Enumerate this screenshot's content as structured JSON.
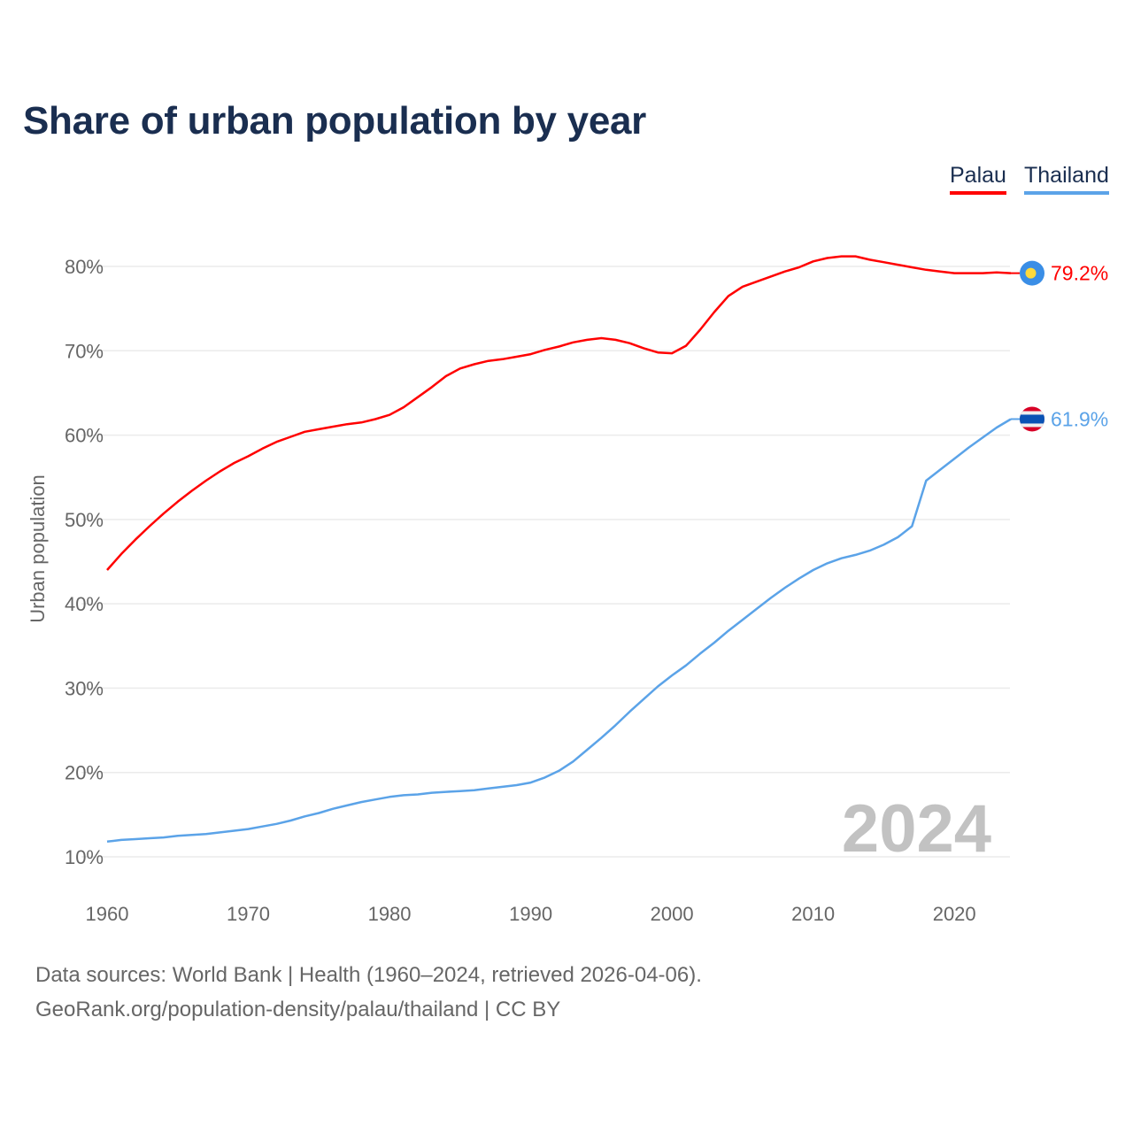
{
  "chart_data": {
    "type": "line",
    "title": "Share of urban population by year",
    "xlabel": "",
    "ylabel": "Urban population",
    "xlim": [
      1960,
      2024
    ],
    "ylim": [
      10,
      80
    ],
    "x_ticks": [
      "1960",
      "1970",
      "1980",
      "1990",
      "2000",
      "2010",
      "2020"
    ],
    "y_ticks": [
      "10%",
      "20%",
      "30%",
      "40%",
      "50%",
      "60%",
      "70%",
      "80%"
    ],
    "grid": true,
    "legend_placement": "top-right",
    "year_watermark": "2024",
    "x": [
      1960,
      1961,
      1962,
      1963,
      1964,
      1965,
      1966,
      1967,
      1968,
      1969,
      1970,
      1971,
      1972,
      1973,
      1974,
      1975,
      1976,
      1977,
      1978,
      1979,
      1980,
      1981,
      1982,
      1983,
      1984,
      1985,
      1986,
      1987,
      1988,
      1989,
      1990,
      1991,
      1992,
      1993,
      1994,
      1995,
      1996,
      1997,
      1998,
      1999,
      2000,
      2001,
      2002,
      2003,
      2004,
      2005,
      2006,
      2007,
      2008,
      2009,
      2010,
      2011,
      2012,
      2013,
      2014,
      2015,
      2016,
      2017,
      2018,
      2019,
      2020,
      2021,
      2022,
      2023,
      2024
    ],
    "series": [
      {
        "name": "Palau",
        "color": "#ff0000",
        "end_label": "79.2%",
        "flag": "palau-flag",
        "values": [
          44.0,
          45.9,
          47.6,
          49.2,
          50.7,
          52.1,
          53.4,
          54.6,
          55.7,
          56.7,
          57.5,
          58.4,
          59.2,
          59.8,
          60.4,
          60.7,
          61.0,
          61.3,
          61.5,
          61.9,
          62.4,
          63.3,
          64.5,
          65.7,
          67.0,
          67.9,
          68.4,
          68.8,
          69.0,
          69.3,
          69.6,
          70.1,
          70.5,
          71.0,
          71.3,
          71.5,
          71.3,
          70.9,
          70.3,
          69.8,
          69.7,
          70.6,
          72.5,
          74.6,
          76.5,
          77.6,
          78.2,
          78.8,
          79.4,
          79.9,
          80.6,
          81.0,
          81.2,
          81.2,
          80.8,
          80.5,
          80.2,
          79.9,
          79.6,
          79.4,
          79.2,
          79.2,
          79.2,
          79.3,
          79.2
        ]
      },
      {
        "name": "Thailand",
        "color": "#5ba3e8",
        "end_label": "61.9%",
        "flag": "thailand-flag",
        "values": [
          11.8,
          12.0,
          12.1,
          12.2,
          12.3,
          12.5,
          12.6,
          12.7,
          12.9,
          13.1,
          13.3,
          13.6,
          13.9,
          14.3,
          14.8,
          15.2,
          15.7,
          16.1,
          16.5,
          16.8,
          17.1,
          17.3,
          17.4,
          17.6,
          17.7,
          17.8,
          17.9,
          18.1,
          18.3,
          18.5,
          18.8,
          19.4,
          20.2,
          21.3,
          22.7,
          24.1,
          25.6,
          27.2,
          28.7,
          30.2,
          31.5,
          32.7,
          34.1,
          35.4,
          36.8,
          38.1,
          39.4,
          40.7,
          41.9,
          43.0,
          44.0,
          44.8,
          45.4,
          45.8,
          46.3,
          47.0,
          47.9,
          49.2,
          54.6,
          55.9,
          57.2,
          58.5,
          59.7,
          60.9,
          61.9
        ]
      }
    ]
  },
  "footer": {
    "line1": "Data sources: World Bank | Health (1960–2024, retrieved 2026-04-06).",
    "line2": "GeoRank.org/population-density/palau/thailand | CC BY"
  }
}
